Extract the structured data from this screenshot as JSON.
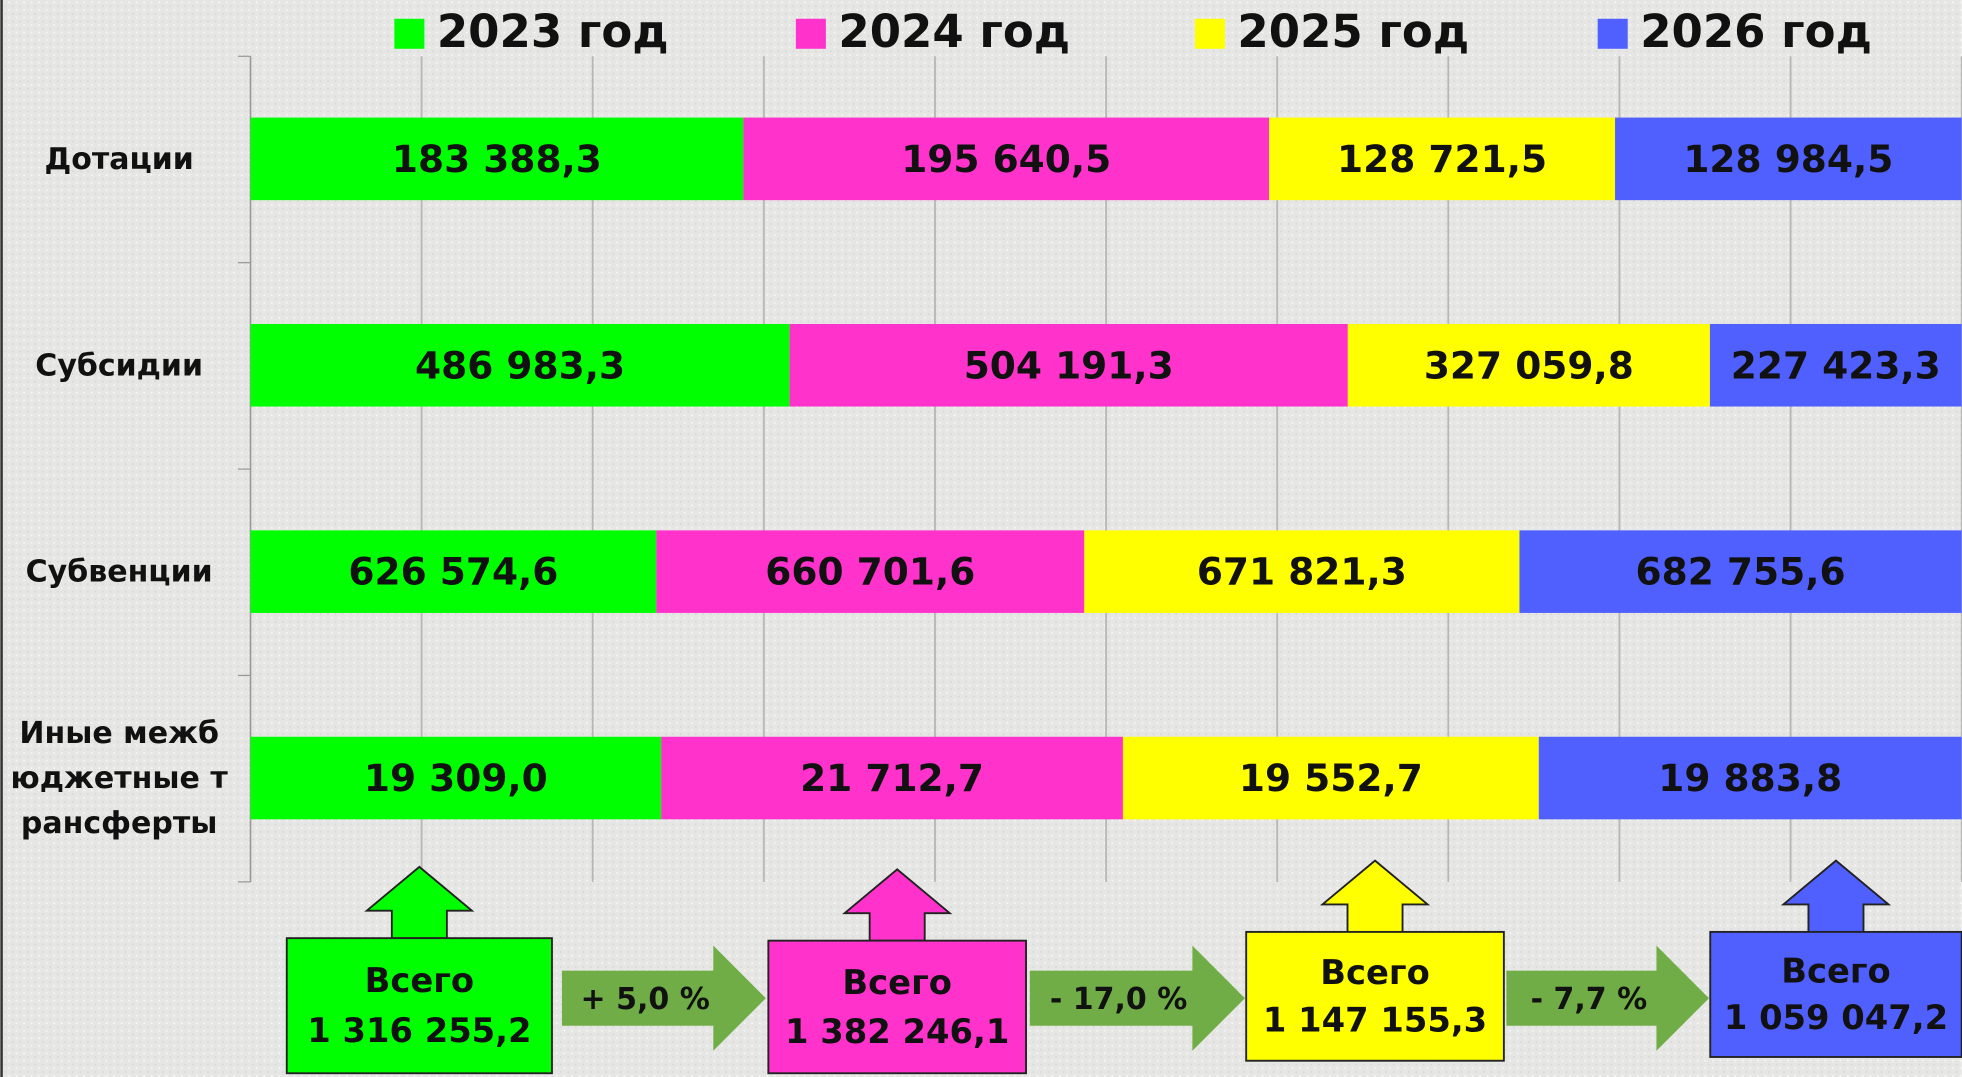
{
  "chart_data": {
    "type": "bar",
    "stacked": "percent",
    "categories": [
      "Дотации",
      "Субсидии",
      "Субвенции",
      "Иные межбюджетные трансферты"
    ],
    "series": [
      {
        "name": "2023 год",
        "color": "#00ff00",
        "values": [
          183388.3,
          486983.3,
          626574.6,
          19309.0
        ],
        "value_labels": [
          "183 388,3",
          "486 983,3",
          "626 574,6",
          "19 309,0"
        ]
      },
      {
        "name": "2024 год",
        "color": "#ff33cc",
        "values": [
          195640.5,
          504191.3,
          660701.6,
          21712.7
        ],
        "value_labels": [
          "195 640,5",
          "504 191,3",
          "660 701,6",
          "21 712,7"
        ]
      },
      {
        "name": "2025 год",
        "color": "#ffff00",
        "values": [
          128721.5,
          327059.8,
          671821.3,
          19552.7
        ],
        "value_labels": [
          "128 721,5",
          "327 059,8",
          "671 821,3",
          "19 552,7"
        ]
      },
      {
        "name": "2026 год",
        "color": "#5060ff",
        "values": [
          128984.5,
          227423.3,
          682755.6,
          19883.8
        ],
        "value_labels": [
          "128 984,5",
          "227 423,3",
          "682 755,6",
          "19 883,8"
        ]
      }
    ],
    "xlim": [
      0,
      100
    ],
    "xticks": [
      0,
      10,
      20,
      30,
      40,
      50,
      60,
      70,
      80,
      90,
      100
    ],
    "grid": true,
    "legend": "top",
    "totals": {
      "label": "Всего",
      "values": [
        1316255.2,
        1382246.1,
        1147155.3,
        1059047.2
      ],
      "value_labels": [
        "1 316 255,2",
        "1 382 246,1",
        "1 147 155,3",
        "1 059 047,2"
      ]
    },
    "changes": {
      "color": "#70ad47",
      "values": [
        5.0,
        -17.0,
        -7.7
      ],
      "value_labels": [
        "+ 5,0 %",
        "- 17,0 %",
        "- 7,7 %"
      ]
    }
  }
}
